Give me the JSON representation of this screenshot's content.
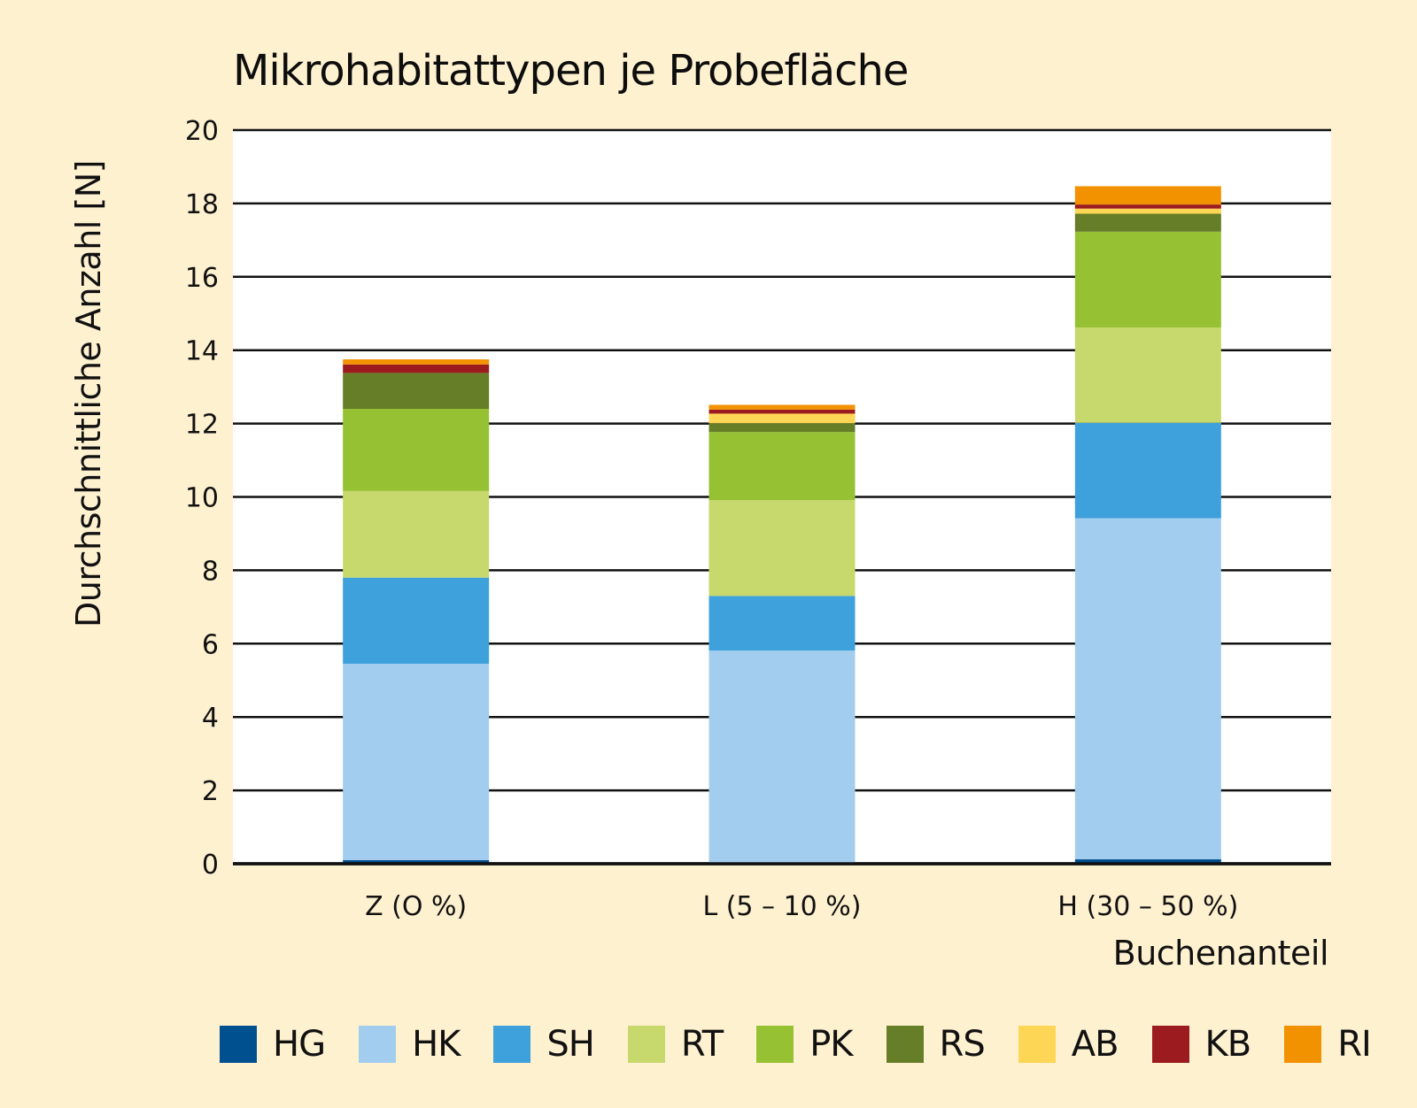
{
  "chart_data": {
    "type": "bar",
    "stacked": true,
    "title": "Mikrohabitattypen je Probefläche",
    "xlabel": "Buchenanteil",
    "ylabel": "Durchschnittliche Anzahl [N]",
    "ylim": [
      0,
      20
    ],
    "yticks": [
      0,
      2,
      4,
      6,
      8,
      10,
      12,
      14,
      16,
      18,
      20
    ],
    "grid": true,
    "legend_position": "bottom",
    "categories": [
      "Z (O %)",
      "L (5 – 10 %)",
      "H (30 – 50 %)"
    ],
    "series": [
      {
        "name": "HG",
        "color": "#004f8f",
        "values": [
          0.1,
          0.0,
          0.12
        ]
      },
      {
        "name": "HK",
        "color": "#a3cdef",
        "values": [
          5.35,
          5.81,
          9.3
        ]
      },
      {
        "name": "SH",
        "color": "#3ea1dc",
        "values": [
          2.35,
          1.49,
          2.6
        ]
      },
      {
        "name": "RT",
        "color": "#c7d86d",
        "values": [
          2.36,
          2.61,
          2.6
        ]
      },
      {
        "name": "PK",
        "color": "#96c132",
        "values": [
          2.24,
          1.86,
          2.61
        ]
      },
      {
        "name": "RS",
        "color": "#667e27",
        "values": [
          0.98,
          0.24,
          0.49
        ]
      },
      {
        "name": "AB",
        "color": "#fed655",
        "values": [
          0.0,
          0.26,
          0.14
        ]
      },
      {
        "name": "KB",
        "color": "#9b1b1e",
        "values": [
          0.23,
          0.11,
          0.11
        ]
      },
      {
        "name": "RI",
        "color": "#f39200",
        "values": [
          0.14,
          0.13,
          0.5
        ]
      }
    ]
  }
}
